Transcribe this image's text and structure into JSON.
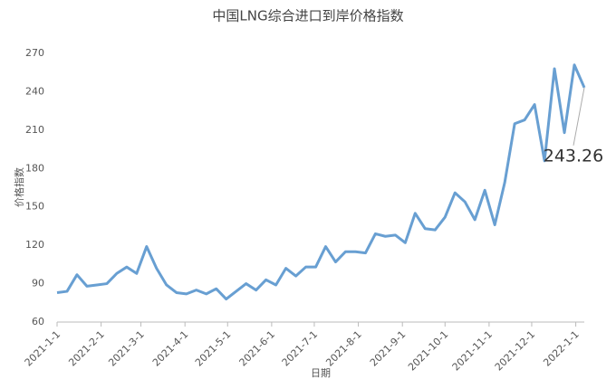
{
  "chart_data": {
    "type": "line",
    "title": "中国LNG综合进口到岸价格指数",
    "xlabel": "日期",
    "ylabel": "价格指数",
    "x": [
      "2021-1-1",
      "2021-1-8",
      "2021-1-15",
      "2021-1-22",
      "2021-1-29",
      "2021-2-5",
      "2021-2-12",
      "2021-2-19",
      "2021-2-26",
      "2021-3-5",
      "2021-3-12",
      "2021-3-19",
      "2021-3-26",
      "2021-4-2",
      "2021-4-9",
      "2021-4-16",
      "2021-4-23",
      "2021-4-30",
      "2021-5-7",
      "2021-5-14",
      "2021-5-21",
      "2021-5-28",
      "2021-6-4",
      "2021-6-11",
      "2021-6-18",
      "2021-6-25",
      "2021-7-2",
      "2021-7-9",
      "2021-7-16",
      "2021-7-23",
      "2021-7-30",
      "2021-8-6",
      "2021-8-13",
      "2021-8-20",
      "2021-8-27",
      "2021-9-3",
      "2021-9-10",
      "2021-9-17",
      "2021-9-24",
      "2021-10-1",
      "2021-10-8",
      "2021-10-15",
      "2021-10-22",
      "2021-10-29",
      "2021-11-5",
      "2021-11-12",
      "2021-11-19",
      "2021-11-26",
      "2021-12-3",
      "2021-12-10",
      "2021-12-17",
      "2021-12-24",
      "2021-12-31",
      "2022-1-7"
    ],
    "series": [
      {
        "color": "#689fd2",
        "values": [
          83,
          84,
          97,
          88,
          89,
          90,
          98,
          103,
          98,
          119,
          102,
          89,
          83,
          82,
          85,
          82,
          86,
          78,
          84,
          90,
          85,
          93,
          89,
          102,
          96,
          103,
          103,
          119,
          107,
          115,
          115,
          114,
          129,
          127,
          128,
          122,
          145,
          133,
          132,
          142,
          161,
          154,
          140,
          163,
          136,
          169,
          215,
          218,
          230,
          186,
          258,
          208,
          261,
          243.26
        ]
      }
    ],
    "xlim": [
      "2021-1-1",
      "2022-1-7"
    ],
    "xticks": [
      "2021-1-1",
      "2021-2-1",
      "2021-3-1",
      "2021-4-1",
      "2021-5-1",
      "2021-6-1",
      "2021-7-1",
      "2021-8-1",
      "2021-9-1",
      "2021-10-1",
      "2021-11-1",
      "2021-12-1",
      "2022-1-1"
    ],
    "ylim": [
      60,
      270
    ],
    "yticks": [
      60,
      90,
      120,
      150,
      180,
      210,
      240,
      270
    ],
    "grid": false
  }
}
